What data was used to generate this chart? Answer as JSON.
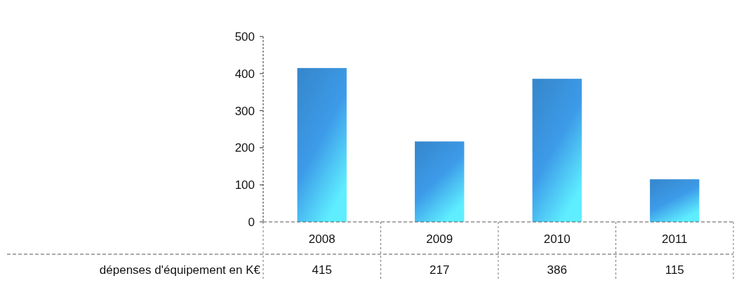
{
  "chart_data": {
    "type": "bar",
    "categories": [
      "2008",
      "2009",
      "2010",
      "2011"
    ],
    "series": [
      {
        "name": "dépenses d'équipement en K€",
        "color": "#3d9be9",
        "values": [
          415,
          217,
          386,
          115
        ]
      }
    ],
    "ylim": [
      0,
      500
    ],
    "yticks": [
      0,
      100,
      200,
      300,
      400,
      500
    ],
    "grid": false,
    "data_labels": true
  }
}
